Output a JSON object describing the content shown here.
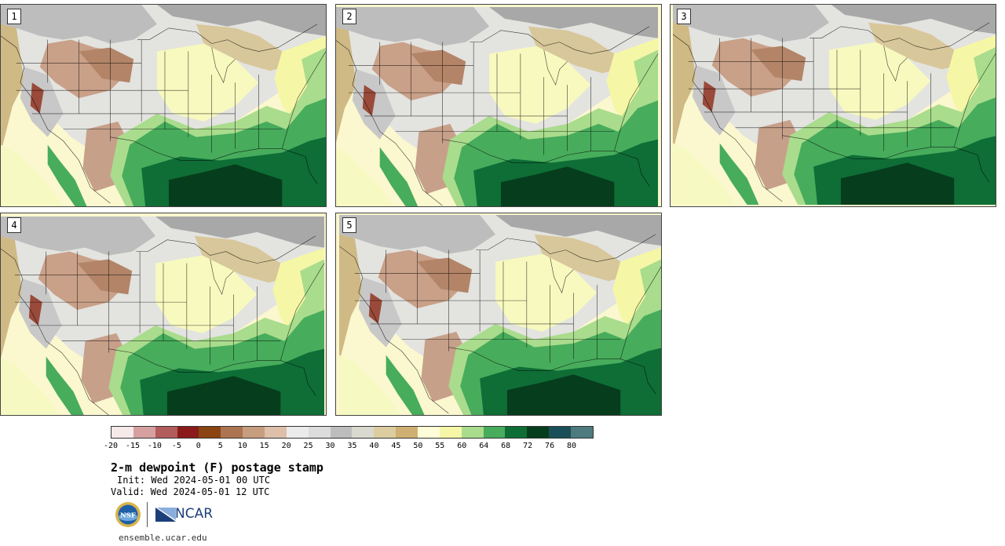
{
  "panels": [
    {
      "label": "1"
    },
    {
      "label": "2"
    },
    {
      "label": "3"
    },
    {
      "label": "4"
    },
    {
      "label": "5"
    }
  ],
  "colorbar": {
    "colors": [
      "#f6e9e9",
      "#d6a0a0",
      "#b25c5c",
      "#8b1b1b",
      "#8b4513",
      "#ad7451",
      "#c79d80",
      "#ddbfaa",
      "#ebebeb",
      "#dcdcdc",
      "#bdbdbd",
      "#d9d9d0",
      "#dccda0",
      "#d0b072",
      "#fdfdd8",
      "#f5f7a6",
      "#a9dc8c",
      "#47ac5c",
      "#0e6e36",
      "#063d1c",
      "#1a4f5a",
      "#4d7b7e"
    ],
    "ticks": [
      "-20",
      "-15",
      "-10",
      "-5",
      "0",
      "5",
      "10",
      "15",
      "20",
      "25",
      "30",
      "35",
      "40",
      "45",
      "50",
      "55",
      "60",
      "64",
      "68",
      "72",
      "76",
      "80"
    ]
  },
  "title": "2-m dewpoint (F) postage stamp",
  "init": "Init: Wed 2024-05-01 00 UTC",
  "valid": "Valid: Wed 2024-05-01 12 UTC",
  "logos": {
    "nsf": "NSF",
    "ncar": "NCAR"
  },
  "url": "ensemble.ucar.edu"
}
